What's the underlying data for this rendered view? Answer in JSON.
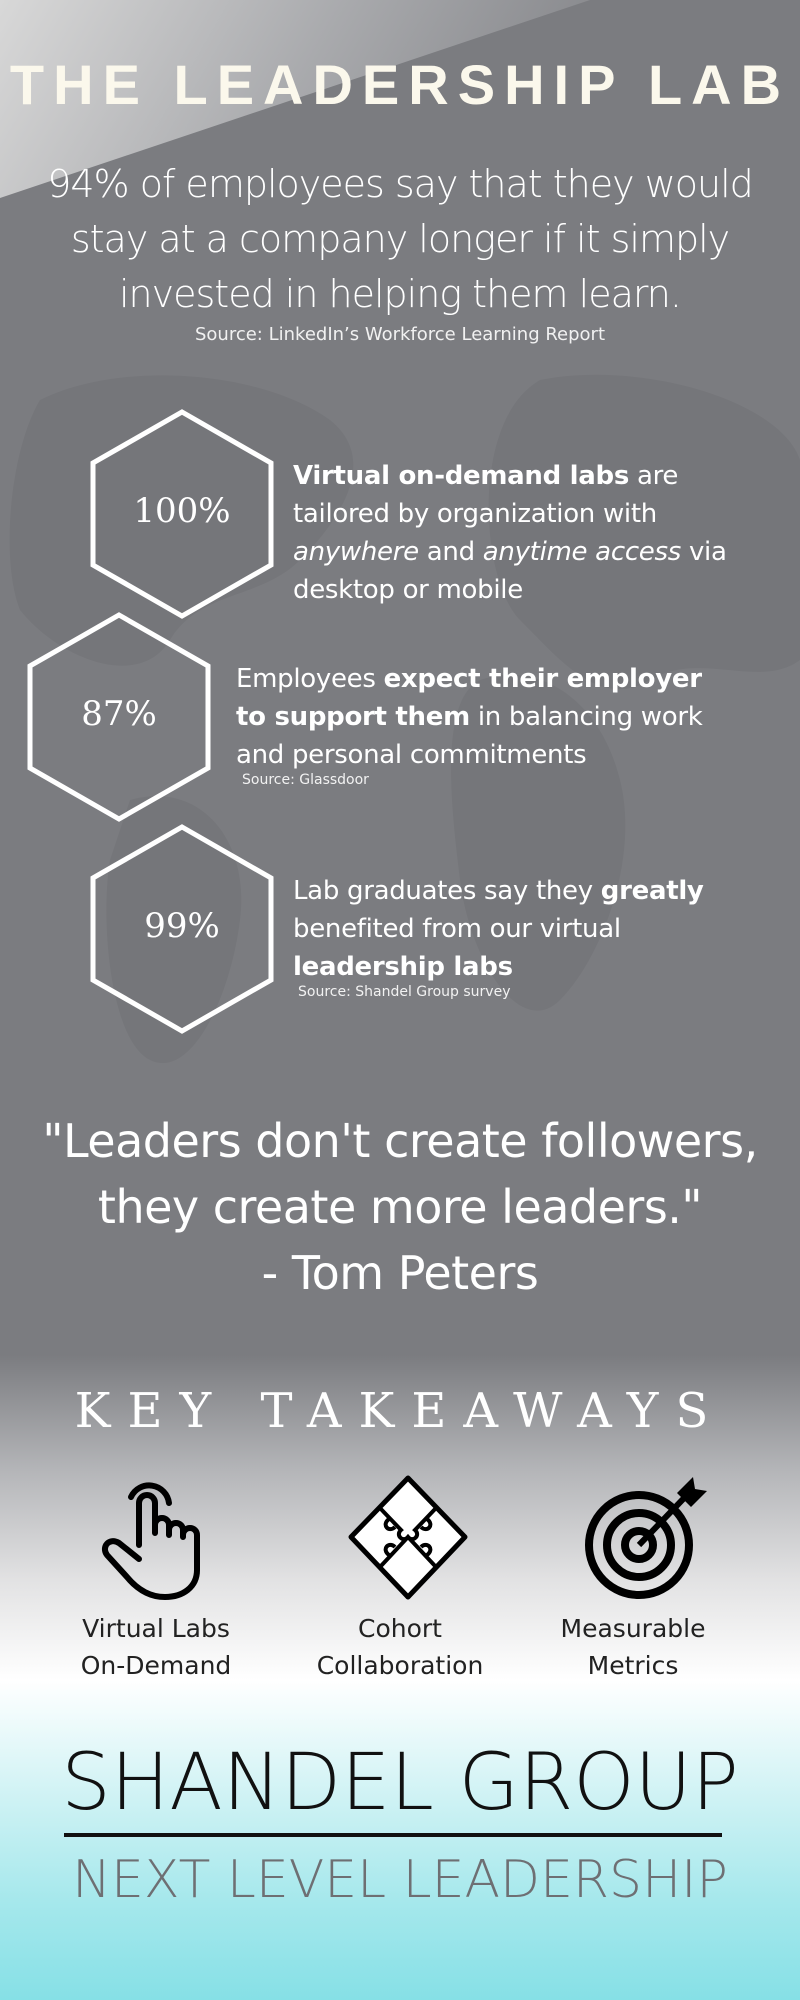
{
  "header": {
    "title": "THE LEADERSHIP LAB",
    "lead_lines": [
      "94% of employees say that they would",
      "stay at a company longer if it simply",
      "invested in helping them learn."
    ],
    "source": "Source: LinkedIn’s Workforce Learning Report"
  },
  "stats": [
    {
      "value": "100%",
      "parts": [
        {
          "b": "Virtual on-demand labs"
        },
        {
          "t": " are tailored by organization with "
        },
        {
          "i": "anywhere"
        },
        {
          "t": " and "
        },
        {
          "i": "anytime access"
        },
        {
          "t": " via desktop or mobile"
        }
      ],
      "source": ""
    },
    {
      "value": "87%",
      "parts": [
        {
          "t": "Employees "
        },
        {
          "b": "expect their employer to support them"
        },
        {
          "t": " in balancing work and personal commitments"
        }
      ],
      "source": "Source: Glassdoor"
    },
    {
      "value": "99%",
      "parts": [
        {
          "t": "Lab graduates say they "
        },
        {
          "b": "greatly"
        },
        {
          "t": " benefited from our virtual "
        },
        {
          "b": "leadership labs"
        }
      ],
      "source": "Source: Shandel Group survey"
    }
  ],
  "quote": {
    "lines": [
      "\"Leaders don't create followers,",
      "they create more leaders.\"",
      "- Tom Peters"
    ]
  },
  "takeaways": {
    "title": "KEY TAKEAWAYS",
    "items": [
      {
        "icon": "hand-pointer-icon",
        "l1": "Virtual Labs",
        "l2": "On-Demand"
      },
      {
        "icon": "puzzle-icon",
        "l1": "Cohort",
        "l2": "Collaboration"
      },
      {
        "icon": "target-icon",
        "l1": "Measurable",
        "l2": "Metrics"
      }
    ]
  },
  "brand": {
    "name": "SHANDEL GROUP",
    "tagline": "NEXT LEVEL LEADERSHIP"
  },
  "colors": {
    "background": "#7b7c80",
    "text": "#ffffff",
    "accent_bottom": "#86e0e6",
    "tagline": "#6e6f73"
  }
}
